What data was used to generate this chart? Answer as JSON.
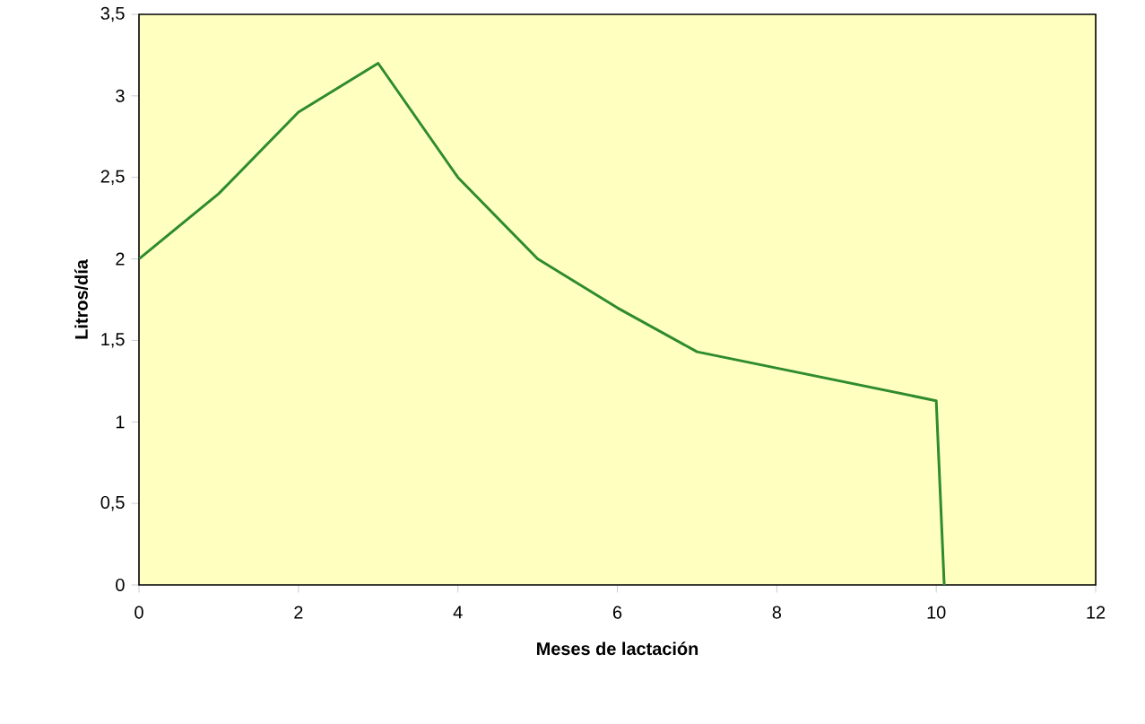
{
  "chart_data": {
    "type": "line",
    "xlabel": "Meses de lactación",
    "ylabel": "Litros/día",
    "x": [
      0,
      1,
      2,
      3,
      4,
      5,
      6,
      7,
      10,
      10.1
    ],
    "values": [
      2.0,
      2.4,
      2.9,
      3.2,
      2.5,
      2.0,
      1.7,
      1.43,
      1.13,
      0
    ],
    "color": "#2e8b2e",
    "marker": "none",
    "line_style": "solid",
    "grid": false,
    "xlim": [
      0,
      12
    ],
    "xticks": [
      0,
      2,
      4,
      6,
      8,
      10,
      12
    ],
    "ylim": [
      0,
      3.5
    ],
    "yticks": [
      0,
      {
        "value": 0.5,
        "label": "0,5"
      },
      1,
      {
        "value": 1.5,
        "label": "1,5"
      },
      2,
      {
        "value": 2.5,
        "label": "2,5"
      },
      3,
      {
        "value": 3.5,
        "label": "3,5"
      }
    ]
  }
}
